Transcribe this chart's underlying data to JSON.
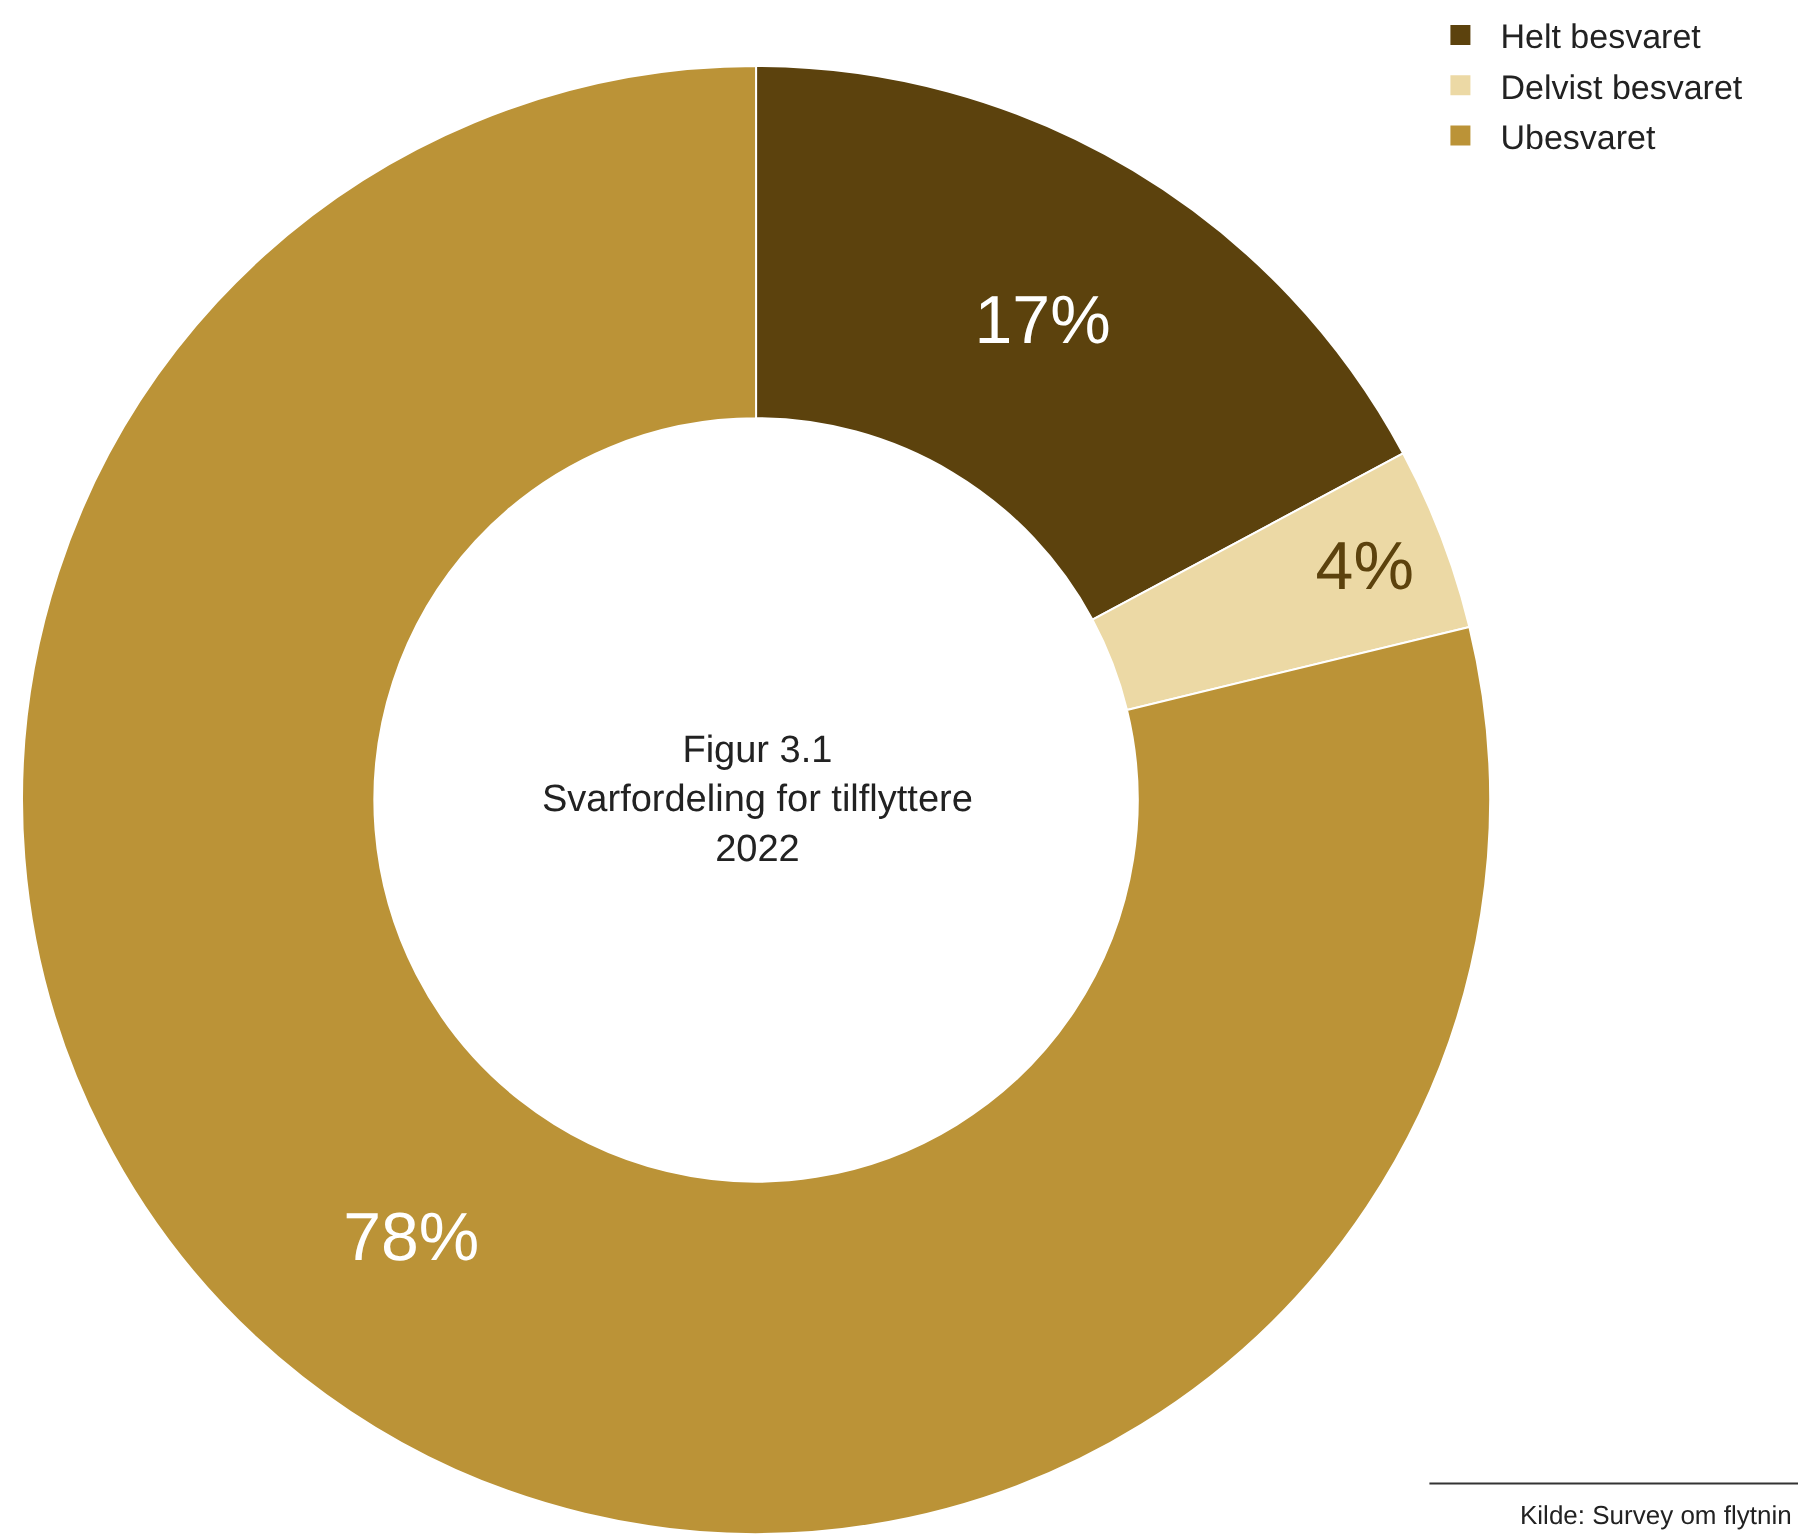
{
  "chart_data": {
    "type": "donut",
    "title": "Figur 3.1\nSvarfordeling for tilflyttere\n2022",
    "categories": [
      "Helt besvaret",
      "Delvist besvaret",
      "Ubesvaret"
    ],
    "values": [
      17,
      4,
      78
    ],
    "colors": [
      "#5c420d",
      "#ecd9a5",
      "#bb9337"
    ],
    "value_labels": [
      "17%",
      "4%",
      "78%"
    ],
    "legend": "top right",
    "annotations": [
      "Kilde: Survey om flytnin"
    ]
  }
}
